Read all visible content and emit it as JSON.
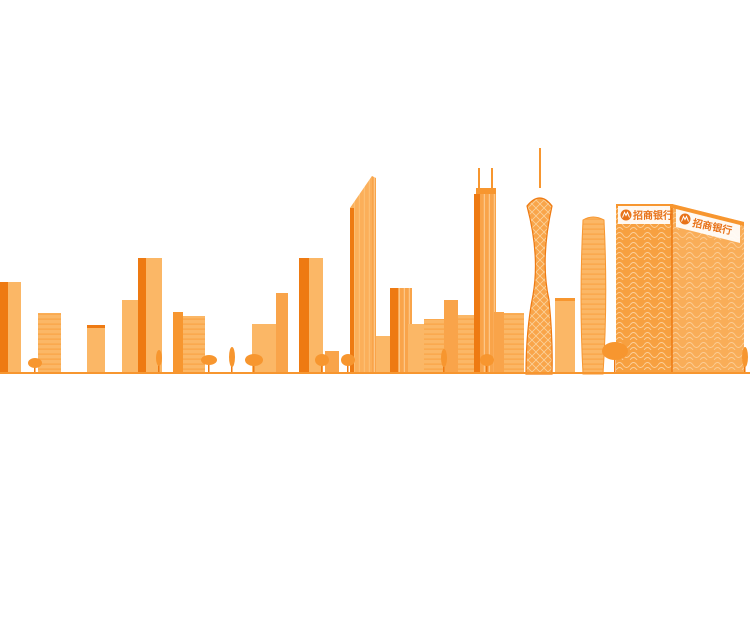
{
  "scene": {
    "colors": {
      "main": "#f7962f",
      "dark": "#ee7a12",
      "light": "#fbb766",
      "pale": "#fdd9a8",
      "window": "#fcc88a",
      "sign_text": "#e8731a"
    },
    "bank_signs": [
      "招商银行",
      "招商银行"
    ],
    "bank_logo_icon": "bank-logo-icon"
  }
}
